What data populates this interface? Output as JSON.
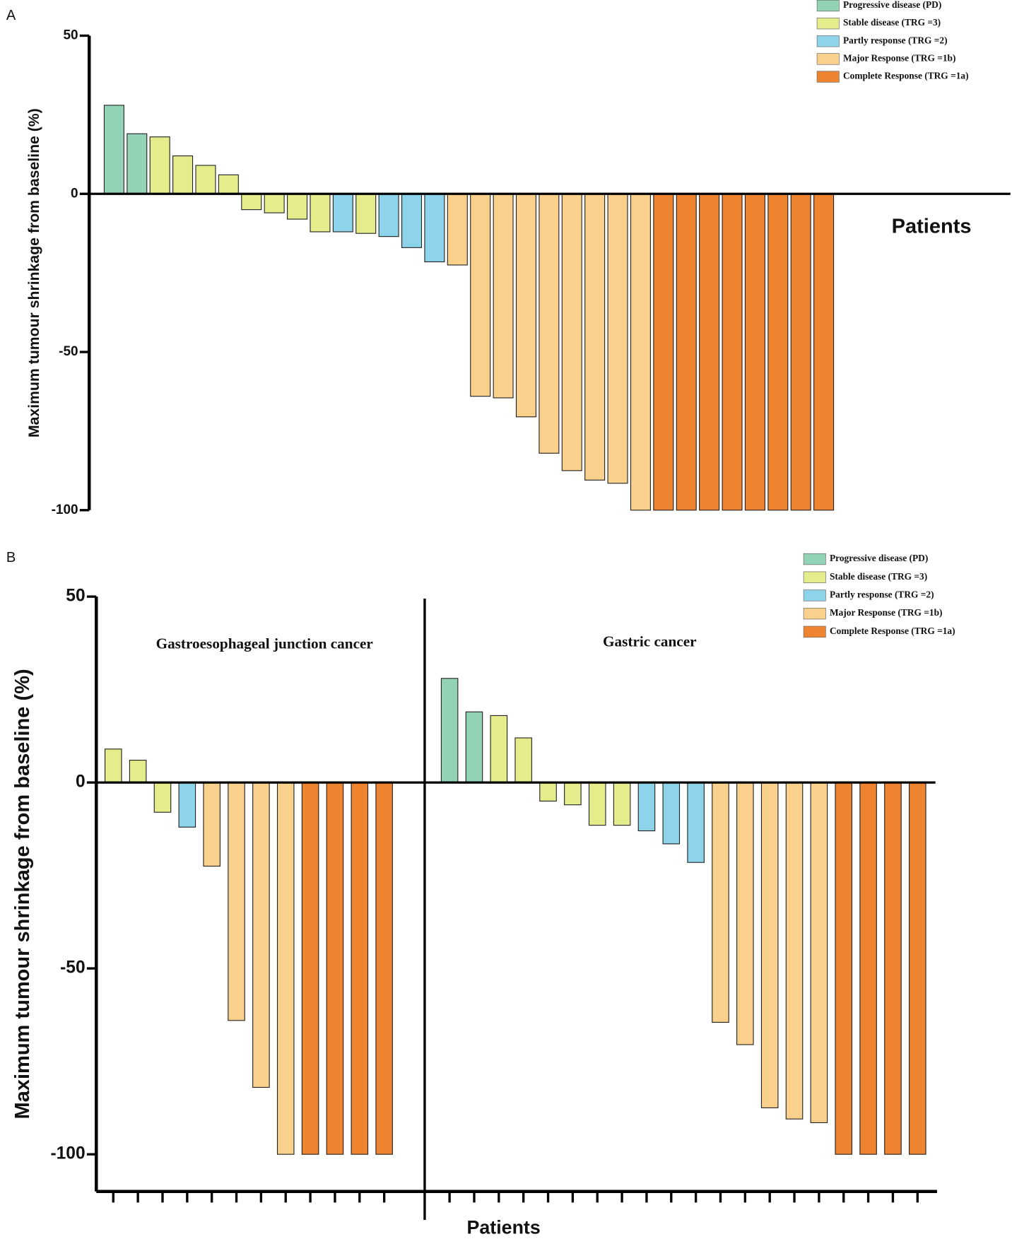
{
  "chart_data": [
    {
      "type": "bar",
      "label": "A",
      "y_label": "Maximum tumour shrinkage from baseline (%)",
      "x_label": "Patients",
      "ylim": [
        -100,
        50
      ],
      "yticks": [
        -100,
        -50,
        0,
        50
      ],
      "series": [
        {
          "name": "Progressive disease (PD)",
          "color": "#93d3b5",
          "values": [
            28,
            19,
            null,
            null,
            null,
            null,
            null,
            null,
            null,
            null,
            null,
            null,
            null,
            null,
            null,
            null,
            null,
            null,
            null,
            null,
            null,
            null,
            null,
            null,
            null,
            null,
            null,
            null,
            null,
            null,
            null,
            null
          ]
        },
        {
          "name": "Stable disease (TRG =3)",
          "color": "#e5ec8c",
          "values": [
            null,
            null,
            18,
            12,
            9,
            6,
            -5,
            -6,
            -8,
            -12,
            null,
            -12.5,
            null,
            null,
            null,
            null,
            null,
            null,
            null,
            null,
            null,
            null,
            null,
            null,
            null,
            null,
            null,
            null,
            null,
            null,
            null,
            null
          ]
        },
        {
          "name": "Partly response (TRG =2)",
          "color": "#8dd4ea",
          "values": [
            null,
            null,
            null,
            null,
            null,
            null,
            null,
            null,
            null,
            null,
            -12,
            null,
            -13.5,
            -17,
            -21.5,
            null,
            null,
            null,
            null,
            null,
            null,
            null,
            null,
            null,
            null,
            null,
            null,
            null,
            null,
            null,
            null,
            null
          ]
        },
        {
          "name": "Major Response (TRG =1b)",
          "color": "#f9d08c",
          "values": [
            null,
            null,
            null,
            null,
            null,
            null,
            null,
            null,
            null,
            null,
            null,
            null,
            null,
            null,
            null,
            -22.5,
            -64,
            -64.5,
            -70.5,
            -82,
            -87.5,
            -90.5,
            -91.5,
            -100,
            null,
            null,
            null,
            null,
            null,
            null,
            null,
            null
          ]
        },
        {
          "name": "Complete Response (TRG =1a)",
          "color": "#ee8330",
          "values": [
            null,
            null,
            null,
            null,
            null,
            null,
            null,
            null,
            null,
            null,
            null,
            null,
            null,
            null,
            null,
            null,
            null,
            null,
            null,
            null,
            null,
            null,
            null,
            null,
            -100,
            -100,
            -100,
            -100,
            -100,
            -100,
            -100,
            -100
          ]
        }
      ]
    },
    {
      "type": "bar",
      "label": "B",
      "y_label": "Maximum tumour shrinkage from baseline (%)",
      "x_label": "Patients",
      "ylim": [
        -110,
        50
      ],
      "yticks": [
        -100,
        -50,
        0,
        50
      ],
      "series": [
        {
          "name": "Progressive disease (PD)",
          "color": "#93d3b5"
        },
        {
          "name": "Stable disease (TRG =3)",
          "color": "#e5ec8c"
        },
        {
          "name": "Partly response (TRG =2)",
          "color": "#8dd4ea"
        },
        {
          "name": "Major Response (TRG =1b)",
          "color": "#f9d08c"
        },
        {
          "name": "Complete Response (TRG =1a)",
          "color": "#ee8330"
        }
      ],
      "panels": [
        {
          "title": "Gastroesophageal junction cancer",
          "series": [
            {
              "values": [
                null,
                null,
                null,
                null,
                null,
                null,
                null,
                null,
                null,
                null,
                null,
                null
              ]
            },
            {
              "values": [
                9,
                6,
                -8,
                null,
                null,
                null,
                null,
                null,
                null,
                null,
                null,
                null
              ]
            },
            {
              "values": [
                null,
                null,
                null,
                -12,
                null,
                null,
                null,
                null,
                null,
                null,
                null,
                null
              ]
            },
            {
              "values": [
                null,
                null,
                null,
                null,
                -22.5,
                -64,
                -82,
                -100,
                null,
                null,
                null,
                null
              ]
            },
            {
              "values": [
                null,
                null,
                null,
                null,
                null,
                null,
                null,
                null,
                -100,
                -100,
                -100,
                -100
              ]
            }
          ]
        },
        {
          "title": "Gastric cancer",
          "series": [
            {
              "values": [
                28,
                19,
                null,
                null,
                null,
                null,
                null,
                null,
                null,
                null,
                null,
                null,
                null,
                null,
                null,
                null,
                null,
                null,
                null,
                null
              ]
            },
            {
              "values": [
                null,
                null,
                18,
                12,
                -5,
                -6,
                -11.5,
                -11.5,
                null,
                null,
                null,
                null,
                null,
                null,
                null,
                null,
                null,
                null,
                null,
                null
              ]
            },
            {
              "values": [
                null,
                null,
                null,
                null,
                null,
                null,
                null,
                null,
                -13,
                -16.5,
                -21.5,
                null,
                null,
                null,
                null,
                null,
                null,
                null,
                null,
                null
              ]
            },
            {
              "values": [
                null,
                null,
                null,
                null,
                null,
                null,
                null,
                null,
                null,
                null,
                null,
                -64.5,
                -70.5,
                -87.5,
                -90.5,
                -91.5,
                null,
                null,
                null,
                null
              ]
            },
            {
              "values": [
                null,
                null,
                null,
                null,
                null,
                null,
                null,
                null,
                null,
                null,
                null,
                null,
                null,
                null,
                null,
                null,
                -100,
                -100,
                -100,
                -100
              ]
            }
          ]
        }
      ]
    }
  ]
}
